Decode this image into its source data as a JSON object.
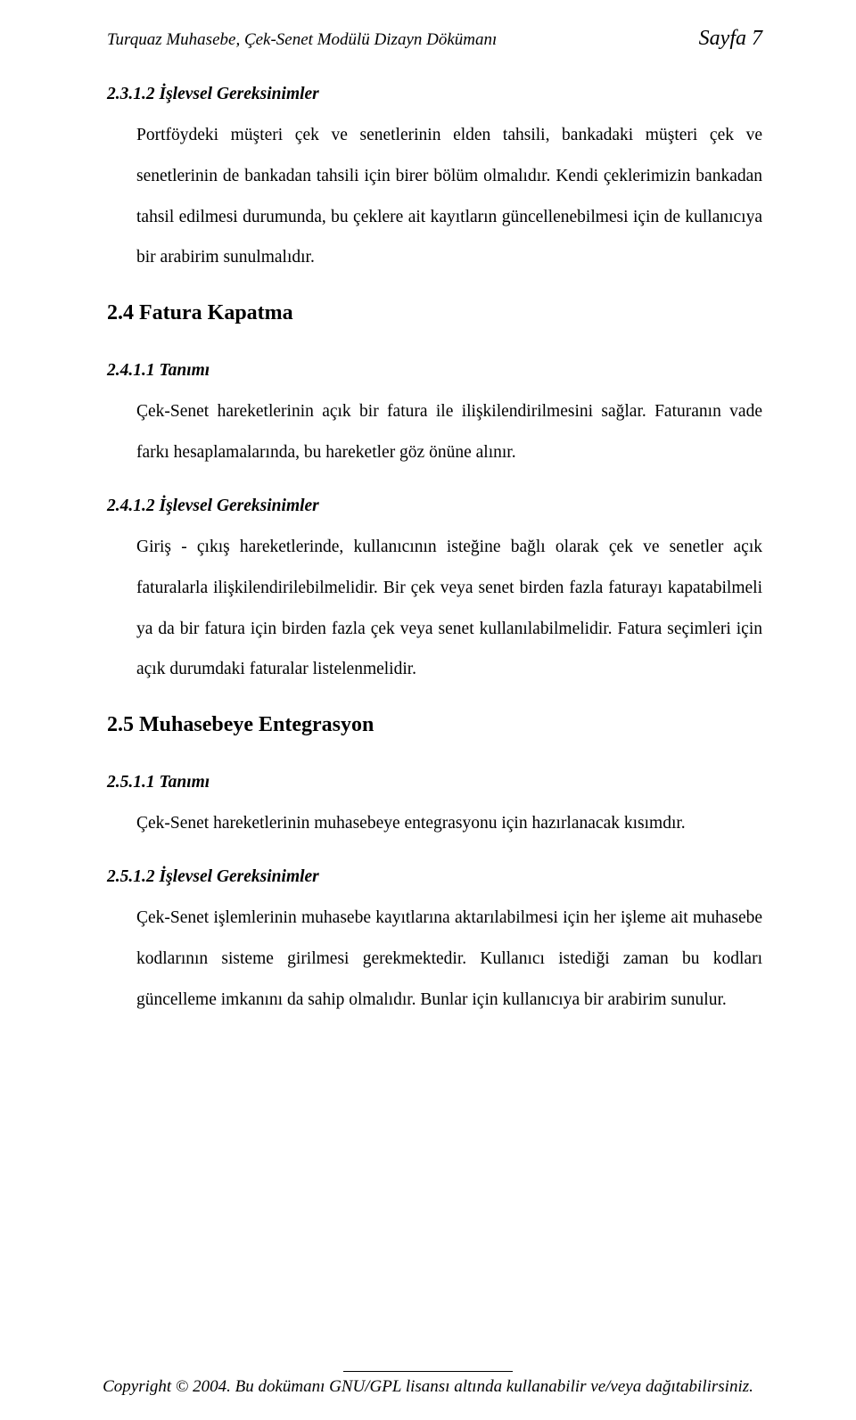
{
  "header": {
    "left": "Turquaz Muhasebe, Çek-Senet Modülü  Dizayn Dökümanı",
    "right": "Sayfa 7"
  },
  "sections": [
    {
      "num_title": "2.3.1.2    İşlevsel Gereksinimler",
      "para": "Portföydeki müşteri çek ve senetlerinin elden tahsili, bankadaki müşteri çek ve senetlerinin de bankadan tahsili için birer bölüm olmalıdır. Kendi çeklerimizin bankadan tahsil edilmesi durumunda,  bu çeklere ait kayıtların güncellenebilmesi için de kullanıcıya  bir arabirim sunulmalıdır."
    }
  ],
  "heading_24": "2.4  Fatura Kapatma",
  "sections_24": [
    {
      "num_title": "2.4.1.1    Tanımı",
      "para": "Çek-Senet hareketlerinin açık bir fatura ile ilişkilendirilmesini sağlar. Faturanın vade farkı hesaplamalarında, bu hareketler göz önüne alınır."
    },
    {
      "num_title": "2.4.1.2    İşlevsel Gereksinimler",
      "para": "Giriş - çıkış hareketlerinde, kullanıcının isteğine bağlı olarak çek ve senetler açık faturalarla ilişkilendirilebilmelidir. Bir çek veya senet birden fazla faturayı kapatabilmeli ya da bir fatura için birden fazla çek veya senet kullanılabilmelidir. Fatura seçimleri için açık durumdaki faturalar listelenmelidir."
    }
  ],
  "heading_25": "2.5  Muhasebeye Entegrasyon",
  "sections_25": [
    {
      "num_title": "2.5.1.1    Tanımı",
      "para": "Çek-Senet hareketlerinin muhasebeye entegrasyonu için hazırlanacak kısımdır."
    },
    {
      "num_title": "2.5.1.2    İşlevsel Gereksinimler",
      "para": "Çek-Senet işlemlerinin muhasebe kayıtlarına aktarılabilmesi için her işleme ait muhasebe kodlarının sisteme girilmesi gerekmektedir. Kullanıcı istediği zaman bu kodları güncelleme imkanını da sahip olmalıdır.  Bunlar için kullanıcıya bir arabirim sunulur."
    }
  ],
  "footer": "Copyright © 2004. Bu dokümanı GNU/GPL lisansı altında kullanabilir ve/veya dağıtabilirsiniz."
}
